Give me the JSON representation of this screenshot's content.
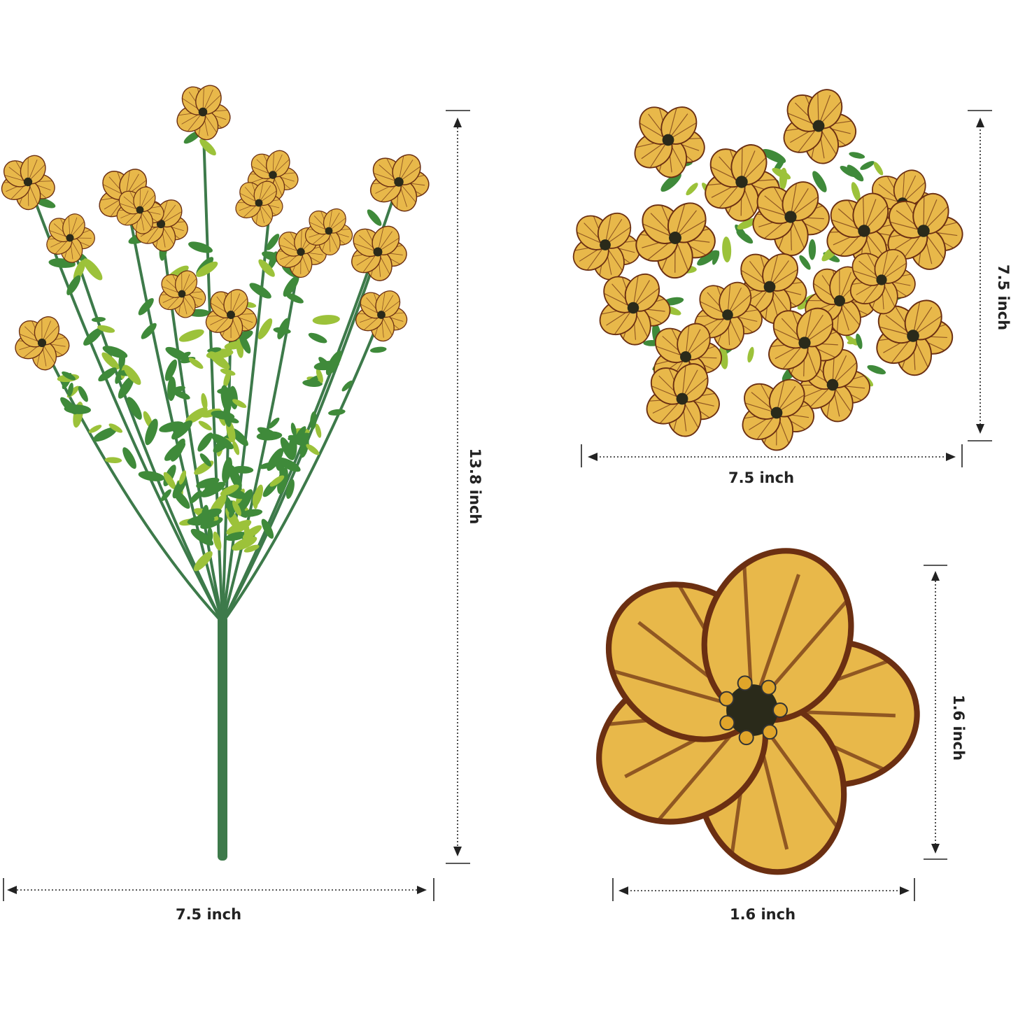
{
  "dimensions": {
    "bouquet_height": "13.8 inch",
    "bouquet_width": "7.5 inch",
    "cluster_width": "7.5 inch",
    "cluster_height": "7.5 inch",
    "flower_height": "1.6 inch",
    "flower_width": "1.6 inch"
  },
  "colors": {
    "petal": "#e8b84a",
    "petal_vein": "#6b2f12",
    "leaf": "#3f8a3a",
    "leaf_light": "#9cc23a",
    "stem": "#3d7a4a"
  }
}
